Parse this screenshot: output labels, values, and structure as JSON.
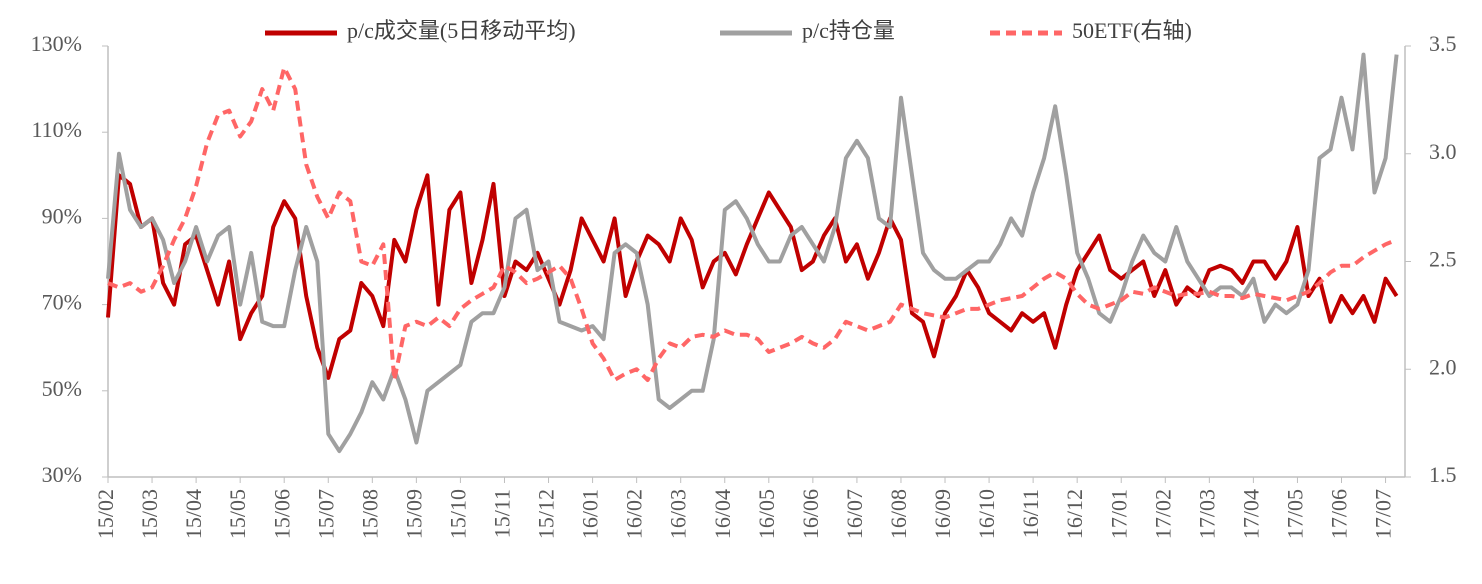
{
  "chart_data": {
    "type": "line",
    "categories": [
      "15/02",
      null,
      null,
      null,
      "15/03",
      null,
      null,
      null,
      "15/04",
      null,
      null,
      null,
      "15/05",
      null,
      null,
      null,
      "15/06",
      null,
      null,
      null,
      "15/07",
      null,
      null,
      null,
      "15/08",
      null,
      null,
      null,
      "15/09",
      null,
      null,
      null,
      "15/10",
      null,
      null,
      null,
      "15/11",
      null,
      null,
      null,
      "15/12",
      null,
      null,
      null,
      "16/01",
      null,
      null,
      null,
      "16/02",
      null,
      null,
      null,
      "16/03",
      null,
      null,
      null,
      "16/04",
      null,
      null,
      null,
      "16/05",
      null,
      null,
      null,
      "16/06",
      null,
      null,
      null,
      "16/07",
      null,
      null,
      null,
      "16/08",
      null,
      null,
      null,
      "16/09",
      null,
      null,
      null,
      "16/10",
      null,
      null,
      null,
      "16/11",
      null,
      null,
      null,
      "16/12",
      null,
      null,
      null,
      "17/01",
      null,
      null,
      null,
      "17/02",
      null,
      null,
      null,
      "17/03",
      null,
      null,
      null,
      "17/04",
      null,
      null,
      null,
      "17/05",
      null,
      null,
      null,
      "17/06",
      null,
      null,
      null,
      "17/07",
      null
    ],
    "series": [
      {
        "name": "p/c成交量(5日移动平均)",
        "color": "#c00000",
        "dashed": false,
        "values": [
          67,
          100,
          98,
          88,
          90,
          75,
          70,
          84,
          86,
          78,
          70,
          80,
          62,
          68,
          72,
          88,
          94,
          90,
          72,
          60,
          53,
          62,
          64,
          75,
          72,
          65,
          85,
          80,
          92,
          100,
          70,
          92,
          96,
          75,
          85,
          98,
          72,
          80,
          78,
          82,
          76,
          70,
          78,
          90,
          85,
          80,
          90,
          72,
          80,
          86,
          84,
          80,
          90,
          85,
          74,
          80,
          82,
          77,
          84,
          90,
          96,
          92,
          88,
          78,
          80,
          86,
          90,
          80,
          84,
          76,
          82,
          90,
          85,
          68,
          66,
          58,
          68,
          72,
          78,
          74,
          68,
          66,
          64,
          68,
          66,
          68,
          60,
          70,
          78,
          82,
          86,
          78,
          76,
          78,
          80,
          72,
          78,
          70,
          74,
          72,
          78,
          79,
          78,
          75,
          80,
          80,
          76,
          80,
          88,
          72,
          76,
          66,
          72,
          68,
          72,
          66,
          76,
          72
        ]
      },
      {
        "name": "p/c持仓量",
        "color": "#a0a0a0",
        "dashed": false,
        "values": [
          76,
          105,
          92,
          88,
          90,
          85,
          75,
          80,
          88,
          80,
          86,
          88,
          70,
          82,
          66,
          65,
          65,
          78,
          88,
          80,
          40,
          36,
          40,
          45,
          52,
          48,
          55,
          48,
          38,
          50,
          52,
          54,
          56,
          66,
          68,
          68,
          74,
          90,
          92,
          78,
          80,
          66,
          65,
          64,
          65,
          62,
          82,
          84,
          82,
          70,
          48,
          46,
          48,
          50,
          50,
          62,
          92,
          94,
          90,
          84,
          80,
          80,
          86,
          88,
          84,
          80,
          88,
          104,
          108,
          104,
          90,
          88,
          118,
          100,
          82,
          78,
          76,
          76,
          78,
          80,
          80,
          84,
          90,
          86,
          96,
          104,
          116,
          100,
          82,
          76,
          68,
          66,
          72,
          80,
          86,
          82,
          80,
          88,
          80,
          76,
          72,
          74,
          74,
          72,
          76,
          66,
          70,
          68,
          70,
          78,
          104,
          106,
          118,
          106,
          128,
          96,
          104,
          128
        ]
      },
      {
        "name": "50ETF(右轴)",
        "color": "#ff6666",
        "dashed": true,
        "axis": "y2",
        "values": [
          2.4,
          2.38,
          2.4,
          2.36,
          2.38,
          2.48,
          2.6,
          2.7,
          2.85,
          3.05,
          3.18,
          3.2,
          3.08,
          3.15,
          3.3,
          3.2,
          3.4,
          3.3,
          2.95,
          2.8,
          2.7,
          2.82,
          2.78,
          2.5,
          2.48,
          2.58,
          1.95,
          2.2,
          2.22,
          2.2,
          2.24,
          2.2,
          2.28,
          2.32,
          2.35,
          2.38,
          2.48,
          2.45,
          2.4,
          2.42,
          2.45,
          2.48,
          2.42,
          2.28,
          2.12,
          2.05,
          1.95,
          1.98,
          2.0,
          1.95,
          2.05,
          2.12,
          2.1,
          2.15,
          2.16,
          2.15,
          2.18,
          2.16,
          2.16,
          2.14,
          2.08,
          2.1,
          2.12,
          2.15,
          2.12,
          2.1,
          2.14,
          2.22,
          2.2,
          2.18,
          2.2,
          2.22,
          2.3,
          2.28,
          2.26,
          2.25,
          2.24,
          2.26,
          2.28,
          2.28,
          2.3,
          2.32,
          2.33,
          2.34,
          2.38,
          2.42,
          2.45,
          2.42,
          2.35,
          2.3,
          2.28,
          2.3,
          2.32,
          2.36,
          2.35,
          2.38,
          2.36,
          2.34,
          2.35,
          2.35,
          2.36,
          2.34,
          2.34,
          2.33,
          2.35,
          2.34,
          2.33,
          2.32,
          2.34,
          2.36,
          2.4,
          2.45,
          2.48,
          2.48,
          2.52,
          2.55,
          2.58,
          2.6
        ]
      }
    ],
    "ylim": [
      30,
      130
    ],
    "yticks": [
      {
        "value": 30,
        "label": "30%"
      },
      {
        "value": 50,
        "label": "50%"
      },
      {
        "value": 70,
        "label": "70%"
      },
      {
        "value": 90,
        "label": "90%"
      },
      {
        "value": 110,
        "label": "110%"
      },
      {
        "value": 130,
        "label": "130%"
      }
    ],
    "y2lim": [
      1.5,
      3.5
    ],
    "y2ticks": [
      1.5,
      {
        "value": 2,
        "label": "2.0"
      },
      2.5,
      {
        "value": 3,
        "label": "3.0"
      },
      3.5
    ],
    "grid": false,
    "legend": "top"
  }
}
